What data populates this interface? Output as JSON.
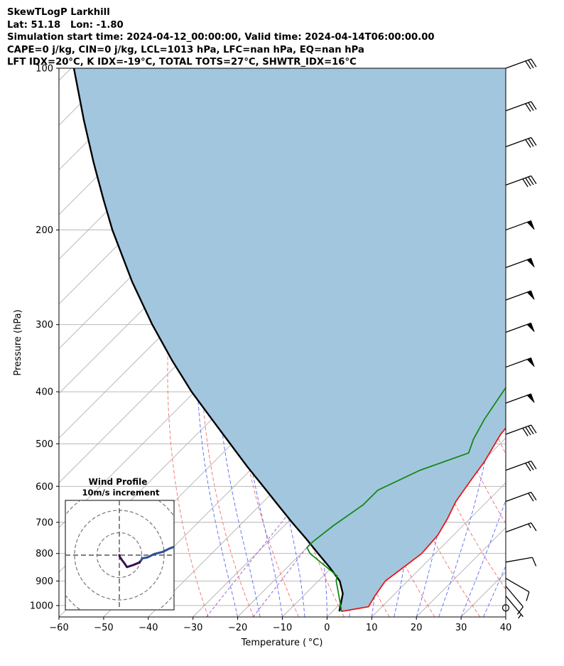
{
  "title_lines": [
    "SkewTLogP Larkhill",
    "Lat: 51.18   Lon: -1.80",
    "Simulation start time: 2024-04-12_00:00:00, Valid time: 2024-04-14T06:00:00.00",
    "CAPE=0 j/kg, CIN=0 j/kg, LCL=1013 hPa, LFC=nan hPa, EQ=nan hPa",
    "LFT IDX=20°C, K IDX=-19°C, TOTAL TOTS=27°C, SHWTR_IDX=16°C"
  ],
  "chart_data": [
    {
      "type": "line",
      "subtype": "skewt-logp",
      "xlabel": "Temperature ( °C)",
      "ylabel": "Pressure (hPa)",
      "xlim": [
        -60,
        40
      ],
      "ylim": [
        1050,
        100
      ],
      "y_scale": "log",
      "x_ticks": [
        "−60",
        "−50",
        "−40",
        "−30",
        "−20",
        "−10",
        "0",
        "10",
        "20",
        "30",
        "40"
      ],
      "y_ticks": [
        {
          "p": 100,
          "label": "100"
        },
        {
          "p": 200,
          "label": "200"
        },
        {
          "p": 300,
          "label": "300"
        },
        {
          "p": 400,
          "label": "400"
        },
        {
          "p": 500,
          "label": "500"
        },
        {
          "p": 600,
          "label": "600"
        },
        {
          "p": 700,
          "label": "700"
        },
        {
          "p": 800,
          "label": "800"
        },
        {
          "p": 900,
          "label": "900"
        },
        {
          "p": 1000,
          "label": "1000"
        }
      ],
      "grid": true,
      "colors": {
        "temperature": "#e31a1c",
        "dewpoint": "#138a13",
        "parcel": "#000000",
        "shading": "#a3c6df",
        "dry_adiabat": "#f07070",
        "moist_adiabat": "#5a6af0",
        "mixing_ratio": "#a050d0",
        "isotherm": "#b0b0b0"
      },
      "series": [
        {
          "name": "temperature",
          "points": [
            [
              2,
              1025
            ],
            [
              7,
              1005
            ],
            [
              6,
              960
            ],
            [
              5,
              900
            ],
            [
              6,
              850
            ],
            [
              7,
              800
            ],
            [
              6.5,
              740
            ],
            [
              5,
              690
            ],
            [
              3,
              640
            ],
            [
              1.5,
              580
            ],
            [
              0.5,
              540
            ],
            [
              -2,
              480
            ],
            [
              -3,
              430
            ],
            [
              -3,
              400
            ],
            [
              -3.5,
              350
            ],
            [
              -4.5,
              330
            ],
            [
              -10,
              275
            ],
            [
              -12,
              245
            ],
            [
              -13,
              220
            ],
            [
              -10,
              190
            ],
            [
              -7,
              170
            ],
            [
              -5.5,
              155
            ],
            [
              -4.5,
              145
            ],
            [
              -2.5,
              130
            ],
            [
              -2,
              120
            ],
            [
              -1,
              112
            ],
            [
              -0.5,
              100
            ]
          ]
        },
        {
          "name": "dewpoint",
          "points": [
            [
              2,
              1025
            ],
            [
              -2,
              960
            ],
            [
              -6,
              900
            ],
            [
              -7,
              880
            ],
            [
              -18,
              800
            ],
            [
              -20,
              780
            ],
            [
              -20,
              760
            ],
            [
              -19,
              710
            ],
            [
              -17,
              650
            ],
            [
              -17,
              610
            ],
            [
              -12,
              560
            ],
            [
              -5,
              520
            ],
            [
              -7,
              490
            ],
            [
              -9,
              450
            ],
            [
              -11,
              400
            ],
            [
              -12,
              375
            ],
            [
              -15,
              330
            ],
            [
              -16.5,
              300
            ],
            [
              -17,
              280
            ],
            [
              -19,
              255
            ],
            [
              -22,
              225
            ],
            [
              -27,
              185
            ],
            [
              -31,
              160
            ],
            [
              -33,
              140
            ],
            [
              -36,
              120
            ],
            [
              -38,
              100
            ]
          ]
        },
        {
          "name": "parcel",
          "points": [
            [
              1.5,
              1025
            ],
            [
              -1.7,
              950
            ],
            [
              -5.2,
              900
            ],
            [
              -10.4,
              850
            ],
            [
              -16.2,
              800
            ],
            [
              -22.3,
              750
            ],
            [
              -29.0,
              700
            ],
            [
              -36.0,
              650
            ],
            [
              -43.5,
              600
            ],
            [
              -51.7,
              550
            ],
            [
              -60.4,
              500
            ],
            [
              -70.0,
              450
            ],
            [
              -80.7,
              400
            ],
            [
              -92.0,
              350
            ],
            [
              -104.5,
              300
            ],
            [
              -118.5,
              250
            ],
            [
              -134.6,
              200
            ],
            [
              -143.6,
              175
            ],
            [
              -153.8,
              150
            ],
            [
              -165.5,
              125
            ],
            [
              -179.4,
              100
            ]
          ]
        }
      ],
      "wind_barbs": [
        {
          "p": 100,
          "speed_kt": 30,
          "dir_deg": 250
        },
        {
          "p": 120,
          "speed_kt": 30,
          "dir_deg": 250
        },
        {
          "p": 140,
          "speed_kt": 30,
          "dir_deg": 250
        },
        {
          "p": 165,
          "speed_kt": 40,
          "dir_deg": 250
        },
        {
          "p": 200,
          "speed_kt": 50,
          "dir_deg": 250
        },
        {
          "p": 235,
          "speed_kt": 50,
          "dir_deg": 250
        },
        {
          "p": 270,
          "speed_kt": 50,
          "dir_deg": 250
        },
        {
          "p": 310,
          "speed_kt": 50,
          "dir_deg": 250
        },
        {
          "p": 360,
          "speed_kt": 50,
          "dir_deg": 250
        },
        {
          "p": 420,
          "speed_kt": 50,
          "dir_deg": 250
        },
        {
          "p": 480,
          "speed_kt": 40,
          "dir_deg": 250
        },
        {
          "p": 560,
          "speed_kt": 30,
          "dir_deg": 250
        },
        {
          "p": 640,
          "speed_kt": 20,
          "dir_deg": 250
        },
        {
          "p": 730,
          "speed_kt": 15,
          "dir_deg": 250
        },
        {
          "p": 830,
          "speed_kt": 10,
          "dir_deg": 260
        },
        {
          "p": 890,
          "speed_kt": 10,
          "dir_deg": 300
        },
        {
          "p": 920,
          "speed_kt": 10,
          "dir_deg": 320
        },
        {
          "p": 960,
          "speed_kt": 5,
          "dir_deg": 320
        },
        {
          "p": 1010,
          "speed_kt": 0,
          "dir_deg": 0
        }
      ]
    },
    {
      "type": "line",
      "subtype": "hodograph",
      "title": "Wind Profile",
      "subtitle": "10m/s increment",
      "ring_increment_ms": 10,
      "rings_ms": [
        10,
        20,
        30
      ],
      "xlim": [
        -30,
        30
      ],
      "ylim": [
        -30,
        30
      ],
      "series": [
        {
          "name": "low-level",
          "color": "#3b0f50",
          "points": [
            [
              0,
              0
            ],
            [
              0.2,
              -0.8
            ],
            [
              1,
              -2
            ],
            [
              2.5,
              -4
            ],
            [
              3.5,
              -5.5
            ],
            [
              5,
              -5
            ],
            [
              6.5,
              -4.5
            ],
            [
              9,
              -3.5
            ],
            [
              10,
              -2.5
            ]
          ]
        },
        {
          "name": "upper-level",
          "color": "#2e4f94",
          "points": [
            [
              10,
              -2.5
            ],
            [
              10.5,
              -1.5
            ],
            [
              13,
              -1
            ],
            [
              16,
              0.5
            ],
            [
              20,
              1.5
            ],
            [
              23,
              3
            ],
            [
              27,
              4.5
            ],
            [
              30,
              6
            ]
          ]
        }
      ]
    }
  ]
}
